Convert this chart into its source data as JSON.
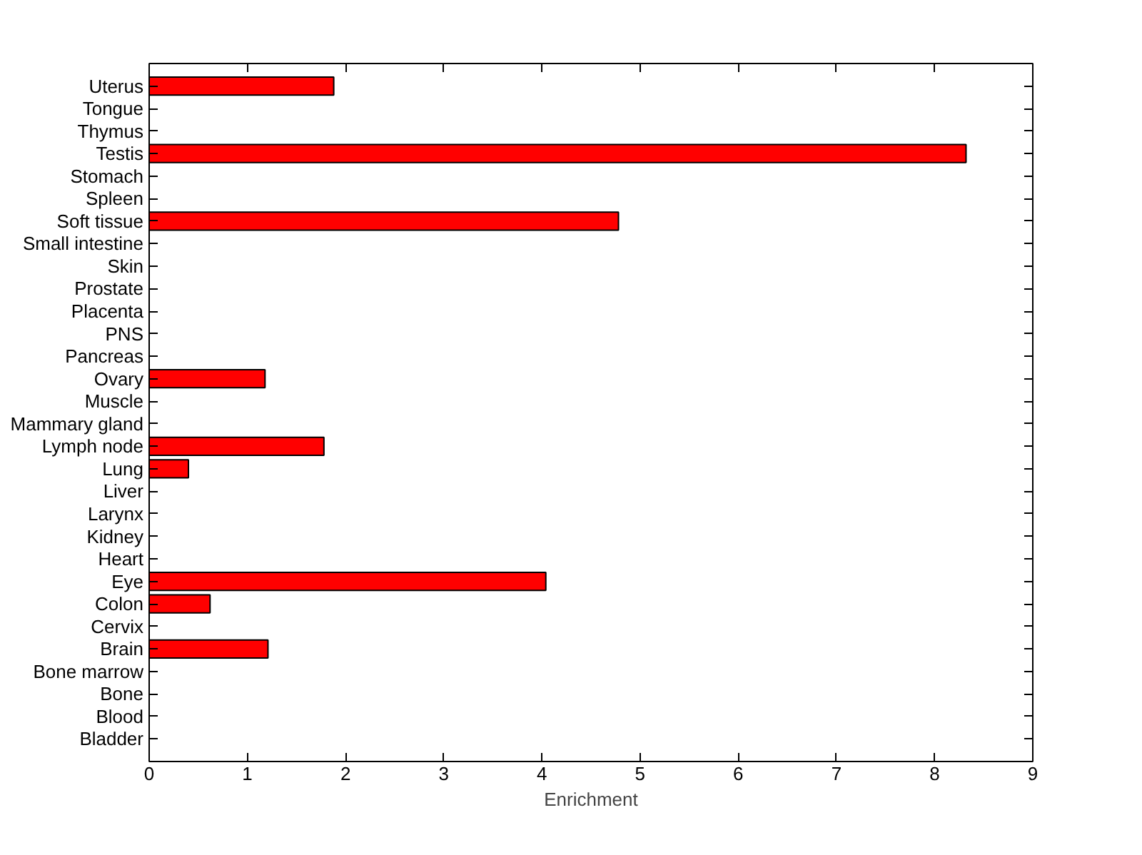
{
  "chart_data": {
    "type": "bar",
    "orientation": "horizontal",
    "xlabel": "Enrichment",
    "categories": [
      "Uterus",
      "Tongue",
      "Thymus",
      "Testis",
      "Stomach",
      "Spleen",
      "Soft tissue",
      "Small intestine",
      "Skin",
      "Prostate",
      "Placenta",
      "PNS",
      "Pancreas",
      "Ovary",
      "Muscle",
      "Mammary gland",
      "Lymph node",
      "Lung",
      "Liver",
      "Larynx",
      "Kidney",
      "Heart",
      "Eye",
      "Colon",
      "Cervix",
      "Brain",
      "Bone marrow",
      "Bone",
      "Blood",
      "Bladder"
    ],
    "values": [
      1.88,
      0,
      0,
      8.32,
      0,
      0,
      4.78,
      0,
      0,
      0,
      0,
      0,
      0,
      1.18,
      0,
      0,
      1.78,
      0.4,
      0,
      0,
      0,
      0,
      4.04,
      0.62,
      0,
      1.21,
      0,
      0,
      0,
      0
    ],
    "color": "#ff0000",
    "xlim": [
      0,
      9
    ],
    "xticks": [
      0,
      1,
      2,
      3,
      4,
      5,
      6,
      7,
      8,
      9
    ],
    "grid": false
  }
}
